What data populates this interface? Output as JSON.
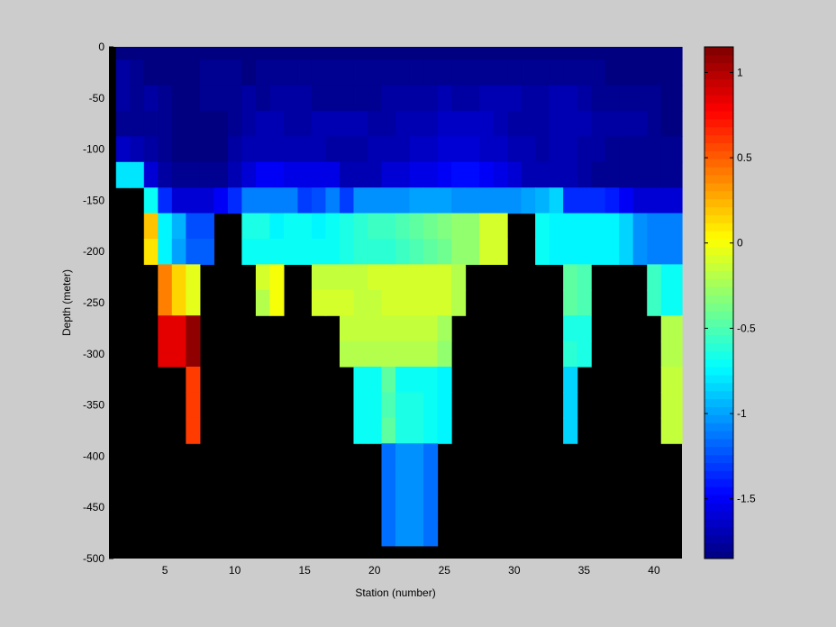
{
  "chart_data": {
    "type": "heatmap",
    "title": "",
    "xlabel": "Station (number)",
    "ylabel": "Depth (meter)",
    "xlim": [
      1,
      42
    ],
    "ylim": [
      -500,
      0
    ],
    "x_ticks": [
      "5",
      "10",
      "15",
      "20",
      "25",
      "30",
      "35",
      "40"
    ],
    "y_ticks": [
      "0",
      "-50",
      "-100",
      "-150",
      "-200",
      "-250",
      "-300",
      "-350",
      "-400",
      "-450",
      "-500"
    ],
    "colorbar": {
      "colormap": "jet",
      "range": [
        -1.85,
        1.15
      ],
      "ticks": [
        "1",
        "0.5",
        "0",
        "-0.5",
        "-1",
        "-1.5"
      ]
    },
    "missing_color": "#000000",
    "background_color": "#cccccc",
    "stations": [
      2,
      3,
      4,
      5,
      6,
      7,
      8,
      9,
      10,
      11,
      12,
      13,
      14,
      15,
      16,
      17,
      18,
      19,
      20,
      21,
      22,
      23,
      24,
      25,
      26,
      27,
      28,
      29,
      30,
      31,
      32,
      33,
      34,
      35,
      36,
      37,
      38,
      39,
      40,
      41
    ],
    "depths": [
      0,
      -25,
      -50,
      -75,
      -100,
      -125,
      -150,
      -175,
      -200,
      -225,
      -250,
      -275,
      -300,
      -325,
      -350,
      -375,
      -400,
      -425,
      -450,
      -475,
      -500
    ],
    "values": [
      [
        -1.85,
        -1.85,
        -1.85,
        -1.85,
        -1.85,
        -1.85,
        -1.85,
        -1.85,
        -1.85,
        -1.85,
        -1.85,
        -1.85,
        -1.85,
        -1.85,
        -1.85,
        -1.85,
        -1.85,
        -1.85,
        -1.85,
        -1.85,
        -1.85,
        -1.85,
        -1.85,
        -1.85,
        -1.85,
        -1.85,
        -1.85,
        -1.85,
        -1.85,
        -1.85,
        -1.85,
        -1.85,
        -1.85,
        -1.85,
        -1.85,
        -1.85,
        -1.85,
        -1.85,
        -1.85,
        -1.85
      ],
      [
        -1.75,
        -1.8,
        -1.85,
        -1.85,
        -1.85,
        -1.85,
        -1.8,
        -1.8,
        -1.8,
        -1.85,
        -1.8,
        -1.8,
        -1.8,
        -1.8,
        -1.8,
        -1.8,
        -1.8,
        -1.8,
        -1.8,
        -1.8,
        -1.8,
        -1.8,
        -1.8,
        -1.8,
        -1.8,
        -1.8,
        -1.8,
        -1.8,
        -1.8,
        -1.8,
        -1.8,
        -1.8,
        -1.8,
        -1.8,
        -1.8,
        -1.85,
        -1.85,
        -1.85,
        -1.85,
        -1.85
      ],
      [
        -1.75,
        -1.8,
        -1.75,
        -1.8,
        -1.85,
        -1.85,
        -1.8,
        -1.8,
        -1.8,
        -1.75,
        -1.8,
        -1.75,
        -1.75,
        -1.75,
        -1.8,
        -1.8,
        -1.8,
        -1.8,
        -1.8,
        -1.75,
        -1.75,
        -1.75,
        -1.75,
        -1.7,
        -1.75,
        -1.75,
        -1.7,
        -1.7,
        -1.7,
        -1.75,
        -1.75,
        -1.7,
        -1.7,
        -1.75,
        -1.8,
        -1.8,
        -1.8,
        -1.8,
        -1.8,
        -1.85
      ],
      [
        -1.8,
        -1.8,
        -1.8,
        -1.8,
        -1.85,
        -1.85,
        -1.85,
        -1.85,
        -1.8,
        -1.75,
        -1.7,
        -1.7,
        -1.75,
        -1.75,
        -1.7,
        -1.7,
        -1.7,
        -1.7,
        -1.75,
        -1.75,
        -1.7,
        -1.7,
        -1.7,
        -1.65,
        -1.65,
        -1.65,
        -1.65,
        -1.7,
        -1.75,
        -1.75,
        -1.75,
        -1.7,
        -1.7,
        -1.7,
        -1.75,
        -1.75,
        -1.75,
        -1.75,
        -1.8,
        -1.85
      ],
      [
        -1.65,
        -1.7,
        -1.75,
        -1.8,
        -1.85,
        -1.85,
        -1.85,
        -1.85,
        -1.75,
        -1.7,
        -1.7,
        -1.7,
        -1.7,
        -1.7,
        -1.7,
        -1.75,
        -1.75,
        -1.75,
        -1.7,
        -1.7,
        -1.7,
        -1.65,
        -1.65,
        -1.6,
        -1.6,
        -1.6,
        -1.65,
        -1.65,
        -1.7,
        -1.7,
        -1.75,
        -1.7,
        -1.7,
        -1.75,
        -1.75,
        -1.8,
        -1.8,
        -1.8,
        -1.8,
        -1.8
      ],
      [
        -0.8,
        -0.8,
        -1.6,
        -1.75,
        -1.8,
        -1.8,
        -1.8,
        -1.8,
        -1.7,
        -1.6,
        -1.5,
        -1.5,
        -1.55,
        -1.55,
        -1.55,
        -1.55,
        -1.7,
        -1.7,
        -1.7,
        -1.6,
        -1.6,
        -1.55,
        -1.55,
        -1.5,
        -1.45,
        -1.45,
        -1.5,
        -1.55,
        -1.6,
        -1.7,
        -1.7,
        -1.7,
        -1.7,
        -1.75,
        -1.8,
        -1.8,
        -1.8,
        -1.8,
        -1.8,
        -1.8
      ],
      [
        null,
        null,
        -0.7,
        -1.35,
        -1.6,
        -1.6,
        -1.6,
        -1.5,
        -1.35,
        -1.1,
        -1.1,
        -1.1,
        -1.1,
        -1.3,
        -1.25,
        -1.1,
        -1.3,
        -1.05,
        -1.05,
        -1.05,
        -1.05,
        -1.0,
        -1.0,
        -1.0,
        -1.05,
        -1.05,
        -1.05,
        -1.05,
        -1.05,
        -1.0,
        -0.95,
        -0.85,
        -1.35,
        -1.35,
        -1.35,
        -1.4,
        -1.5,
        -1.6,
        -1.6,
        -1.6
      ],
      [
        null,
        null,
        0.2,
        -0.75,
        -0.95,
        -1.25,
        -1.25,
        null,
        null,
        -0.65,
        -0.65,
        -0.75,
        -0.7,
        -0.7,
        -0.75,
        -0.7,
        -0.65,
        -0.6,
        -0.55,
        -0.55,
        -0.5,
        -0.45,
        -0.4,
        -0.35,
        -0.3,
        -0.3,
        -0.1,
        -0.1,
        null,
        null,
        -0.7,
        -0.75,
        -0.75,
        -0.75,
        -0.75,
        -0.75,
        -0.85,
        -1.05,
        -1.1,
        -1.1
      ],
      [
        null,
        null,
        0.1,
        -0.75,
        -1.0,
        -1.2,
        -1.2,
        null,
        null,
        -0.7,
        -0.7,
        -0.7,
        -0.7,
        -0.7,
        -0.7,
        -0.7,
        -0.65,
        -0.6,
        -0.6,
        -0.6,
        -0.55,
        -0.5,
        -0.45,
        -0.4,
        -0.3,
        -0.3,
        -0.1,
        -0.1,
        null,
        null,
        -0.7,
        -0.75,
        -0.75,
        -0.75,
        -0.75,
        -0.75,
        -0.85,
        -1.05,
        -1.1,
        -1.1
      ],
      [
        null,
        null,
        null,
        0.4,
        0.15,
        -0.05,
        null,
        null,
        null,
        null,
        -0.1,
        0.0,
        null,
        null,
        -0.15,
        -0.15,
        -0.15,
        -0.15,
        -0.1,
        -0.1,
        -0.1,
        -0.1,
        -0.1,
        -0.1,
        -0.2,
        null,
        null,
        null,
        null,
        null,
        null,
        null,
        -0.45,
        -0.5,
        null,
        null,
        null,
        null,
        -0.55,
        -0.7
      ],
      [
        null,
        null,
        null,
        0.4,
        0.15,
        -0.05,
        null,
        null,
        null,
        null,
        -0.2,
        0.0,
        null,
        null,
        -0.1,
        -0.1,
        -0.1,
        -0.15,
        -0.15,
        -0.1,
        -0.1,
        -0.1,
        -0.1,
        -0.1,
        -0.2,
        null,
        null,
        null,
        null,
        null,
        null,
        null,
        -0.45,
        -0.5,
        null,
        null,
        null,
        null,
        -0.55,
        -0.7
      ],
      [
        null,
        null,
        null,
        0.85,
        0.85,
        1.1,
        null,
        null,
        null,
        null,
        null,
        null,
        null,
        null,
        null,
        null,
        -0.15,
        -0.15,
        -0.15,
        -0.15,
        -0.15,
        -0.15,
        -0.15,
        -0.25,
        null,
        null,
        null,
        null,
        null,
        null,
        null,
        null,
        -0.65,
        -0.65,
        null,
        null,
        null,
        null,
        null,
        -0.2
      ],
      [
        null,
        null,
        null,
        0.85,
        0.85,
        1.1,
        null,
        null,
        null,
        null,
        null,
        null,
        null,
        null,
        null,
        null,
        -0.2,
        -0.2,
        -0.2,
        -0.2,
        -0.2,
        -0.2,
        -0.2,
        -0.3,
        null,
        null,
        null,
        null,
        null,
        null,
        null,
        null,
        -0.6,
        -0.65,
        null,
        null,
        null,
        null,
        null,
        -0.2
      ],
      [
        null,
        null,
        null,
        null,
        null,
        0.6,
        null,
        null,
        null,
        null,
        null,
        null,
        null,
        null,
        null,
        null,
        null,
        -0.7,
        -0.7,
        -0.45,
        -0.7,
        -0.7,
        -0.7,
        -0.75,
        null,
        null,
        null,
        null,
        null,
        null,
        null,
        null,
        -0.85,
        null,
        null,
        null,
        null,
        null,
        null,
        -0.15
      ],
      [
        null,
        null,
        null,
        null,
        null,
        0.6,
        null,
        null,
        null,
        null,
        null,
        null,
        null,
        null,
        null,
        null,
        null,
        -0.7,
        -0.7,
        -0.5,
        -0.65,
        -0.65,
        -0.7,
        -0.75,
        null,
        null,
        null,
        null,
        null,
        null,
        null,
        null,
        -0.85,
        null,
        null,
        null,
        null,
        null,
        null,
        -0.15
      ],
      [
        null,
        null,
        null,
        null,
        null,
        0.6,
        null,
        null,
        null,
        null,
        null,
        null,
        null,
        null,
        null,
        null,
        null,
        -0.7,
        -0.7,
        -0.45,
        -0.65,
        -0.65,
        -0.7,
        -0.75,
        null,
        null,
        null,
        null,
        null,
        null,
        null,
        null,
        -0.85,
        null,
        null,
        null,
        null,
        null,
        null,
        -0.15
      ],
      [
        null,
        null,
        null,
        null,
        null,
        null,
        null,
        null,
        null,
        null,
        null,
        null,
        null,
        null,
        null,
        null,
        null,
        null,
        null,
        -1.15,
        -1.05,
        -1.05,
        -1.15,
        null,
        null,
        null,
        null,
        null,
        null,
        null,
        null,
        null,
        null,
        null,
        null,
        null,
        null,
        null,
        null,
        null
      ],
      [
        null,
        null,
        null,
        null,
        null,
        null,
        null,
        null,
        null,
        null,
        null,
        null,
        null,
        null,
        null,
        null,
        null,
        null,
        null,
        -1.15,
        -1.05,
        -1.05,
        -1.15,
        null,
        null,
        null,
        null,
        null,
        null,
        null,
        null,
        null,
        null,
        null,
        null,
        null,
        null,
        null,
        null,
        null
      ],
      [
        null,
        null,
        null,
        null,
        null,
        null,
        null,
        null,
        null,
        null,
        null,
        null,
        null,
        null,
        null,
        null,
        null,
        null,
        null,
        -1.15,
        -1.05,
        -1.05,
        -1.15,
        null,
        null,
        null,
        null,
        null,
        null,
        null,
        null,
        null,
        null,
        null,
        null,
        null,
        null,
        null,
        null,
        null
      ],
      [
        null,
        null,
        null,
        null,
        null,
        null,
        null,
        null,
        null,
        null,
        null,
        null,
        null,
        null,
        null,
        null,
        null,
        null,
        null,
        -1.15,
        -1.05,
        -1.05,
        -1.15,
        null,
        null,
        null,
        null,
        null,
        null,
        null,
        null,
        null,
        null,
        null,
        null,
        null,
        null,
        null,
        null,
        null
      ]
    ]
  }
}
